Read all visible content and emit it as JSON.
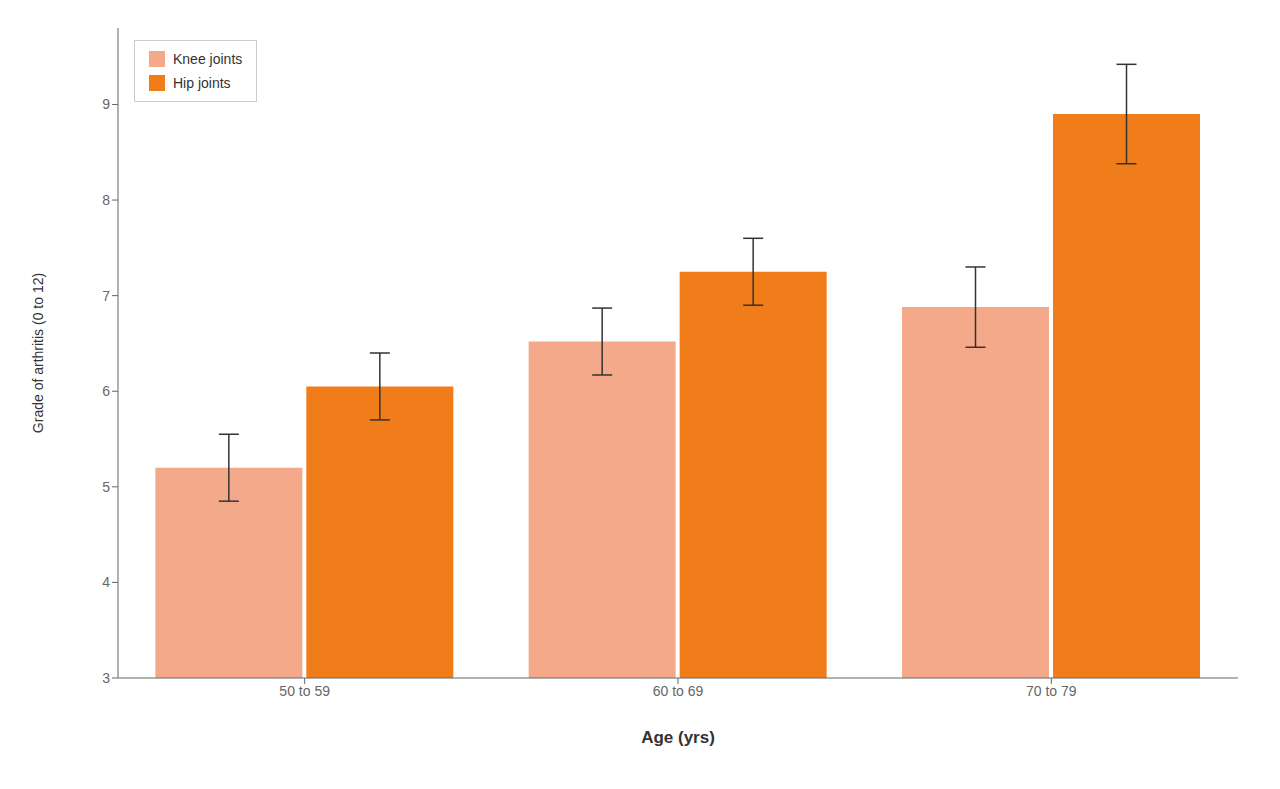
{
  "chart_data": {
    "type": "bar",
    "categories": [
      "50 to 59",
      "60 to 69",
      "70 to 79"
    ],
    "series": [
      {
        "name": "Knee joints",
        "color": "#F4A98A",
        "values": [
          5.2,
          6.52,
          6.88
        ],
        "errors": [
          0.35,
          0.35,
          0.42
        ]
      },
      {
        "name": "Hip joints",
        "color": "#F07D1A",
        "values": [
          6.05,
          7.25,
          8.9
        ],
        "errors": [
          0.35,
          0.35,
          0.52
        ]
      }
    ],
    "xlabel": "Age (yrs)",
    "ylabel": "Grade of arthritis (0 to 12)",
    "ylim": [
      3,
      9.8
    ],
    "yticks": [
      3,
      4,
      5,
      6,
      7,
      8,
      9
    ],
    "grid": false,
    "legend": "upper left"
  }
}
